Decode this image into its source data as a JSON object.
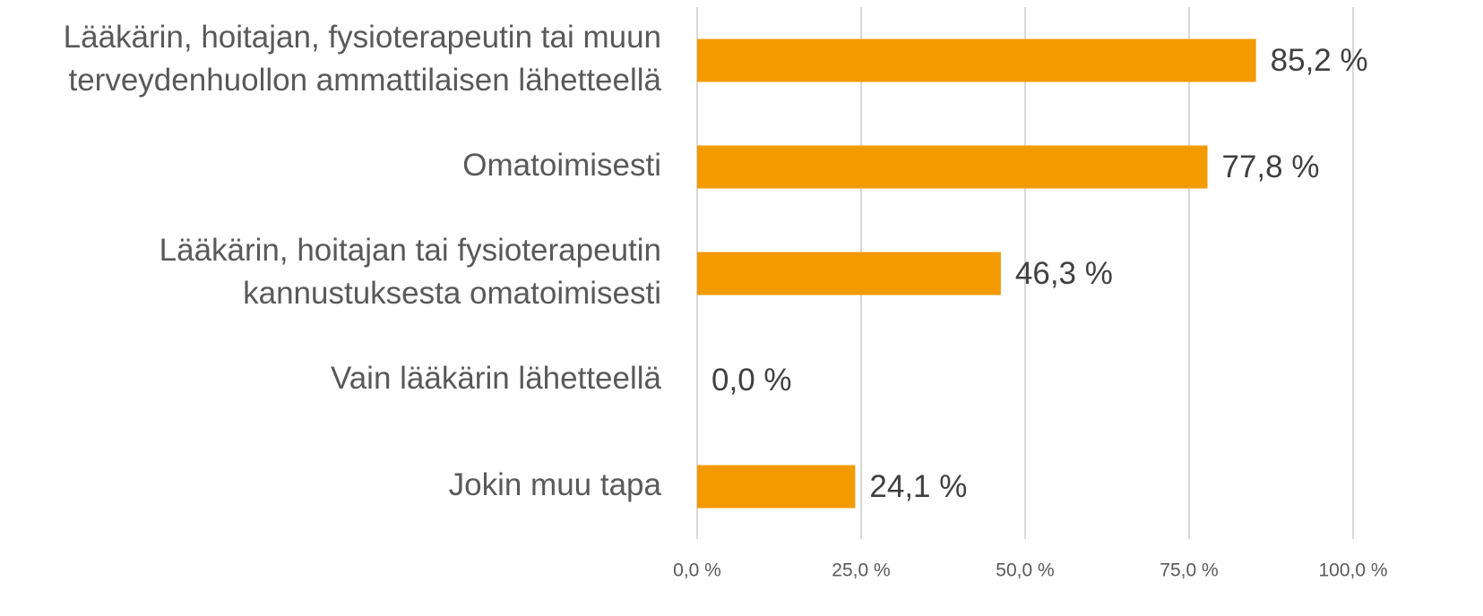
{
  "chart_data": {
    "type": "bar",
    "orientation": "horizontal",
    "categories": [
      [
        "Lääkärin, hoitajan, fysioterapeutin tai muun",
        "terveydenhuollon ammattilaisen lähetteellä"
      ],
      [
        "Omatoimisesti"
      ],
      [
        "Lääkärin, hoitajan tai fysioterapeutin",
        "kannustuksesta omatoimisesti"
      ],
      [
        "Vain lääkärin lähetteellä"
      ],
      [
        "Jokin muu tapa"
      ]
    ],
    "values": [
      85.2,
      77.8,
      46.3,
      0,
      24.1
    ],
    "value_labels": [
      "85,2 %",
      "77,8 %",
      "46,3 %",
      "0,0 %",
      "24,1 %"
    ],
    "color": "#f39a00",
    "xlim": [
      0,
      100
    ],
    "xticks": [
      {
        "value": 0,
        "label": "0,0 %"
      },
      {
        "value": 25,
        "label": "25,0 %"
      },
      {
        "value": 50,
        "label": "50,0 %"
      },
      {
        "value": 75,
        "label": "75,0 %"
      },
      {
        "value": 100,
        "label": "100,0 %"
      }
    ],
    "grid": true
  }
}
